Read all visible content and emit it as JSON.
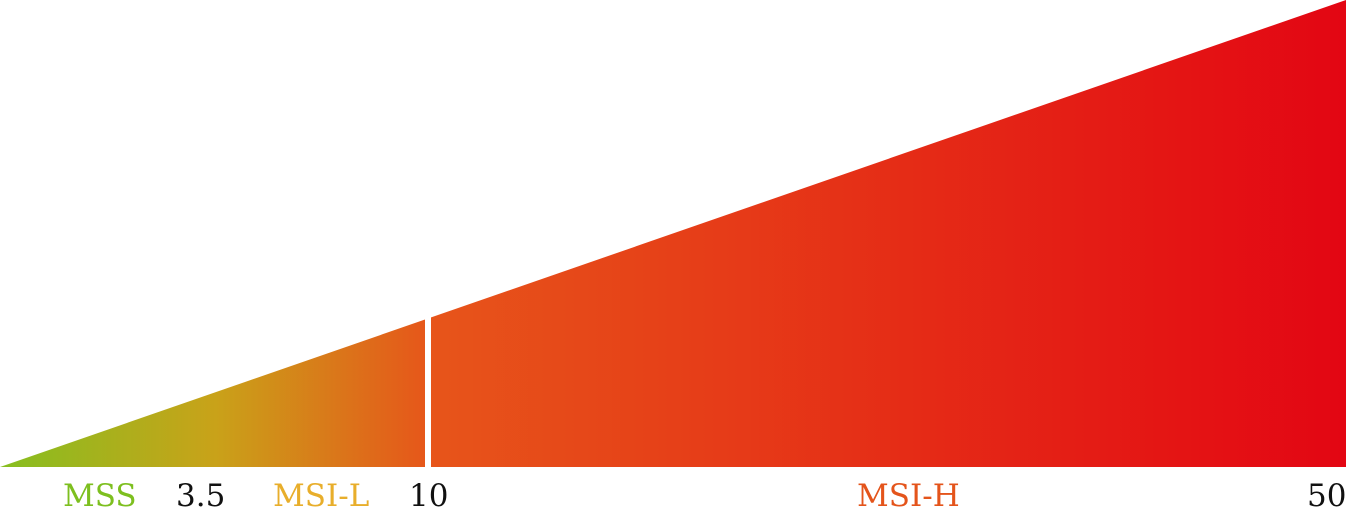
{
  "scale": {
    "min": 0,
    "max": 50,
    "divider_at": 10
  },
  "labels": {
    "mss": "MSS",
    "threshold_low": "3.5",
    "msi_l": "MSI-L",
    "threshold_mid": "10",
    "msi_h": "MSI-H",
    "max_value": "50"
  },
  "colors": {
    "mss": "#7dbf1f",
    "msi_l": "#e8ae2b",
    "msi_h": "#e4541b",
    "number": "#111111",
    "gradient_start": "#86bf20",
    "gradient_mid1": "#c9a219",
    "gradient_mid2": "#e7551a",
    "gradient_end": "#e30613"
  }
}
